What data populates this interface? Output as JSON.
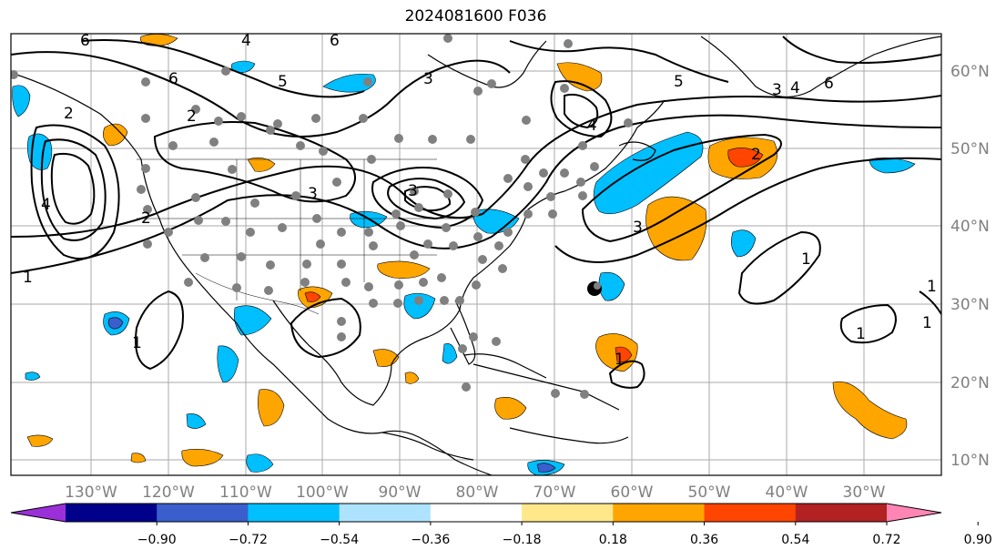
{
  "title": "2024081600 F036",
  "map": {
    "lon_labels": [
      "130°W",
      "120°W",
      "110°W",
      "100°W",
      "90°W",
      "80°W",
      "70°W",
      "60°W",
      "50°W",
      "40°W",
      "30°W"
    ],
    "lat_labels": [
      "60°N",
      "50°N",
      "40°N",
      "30°N",
      "20°N",
      "10°N"
    ],
    "contour_labels": [
      "6",
      "4",
      "6",
      "2",
      "2",
      "3",
      "3",
      "1",
      "1",
      "5",
      "6",
      "2",
      "3",
      "4",
      "5",
      "3",
      "4",
      "6",
      "4",
      "2",
      "3",
      "1",
      "1",
      "1",
      "1",
      "1"
    ]
  },
  "colorbar": {
    "ticks": [
      "−0.90",
      "−0.72",
      "−0.54",
      "−0.36",
      "−0.18",
      "0.18",
      "0.36",
      "0.54",
      "0.72",
      "0.90"
    ],
    "colors": [
      "#9b30d9",
      "#00008b",
      "#3a5fcd",
      "#00bfff",
      "#aee3ff",
      "#ffffff",
      "#ffe88a",
      "#ffa500",
      "#ff4500",
      "#b22222",
      "#ff85b4"
    ]
  }
}
